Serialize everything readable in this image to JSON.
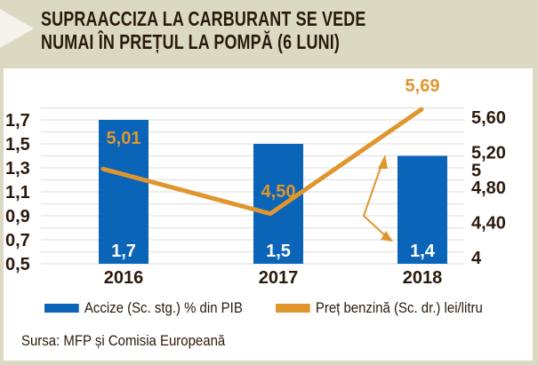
{
  "header": {
    "title_line1": "SUPRAACCIZA LA CARBURANT SE VEDE",
    "title_line2": "NUMAI ÎN PREȚUL LA POMPĂ (6 LUNI)"
  },
  "colors": {
    "bar": "#0a64b8",
    "line": "#e0962e",
    "grid": "#dedede",
    "frame": "#dcd9c3"
  },
  "legend": {
    "bar_label": "Accize (Sc. stg.) % din PIB",
    "line_label": "Preț benzină (Sc. dr.) lei/litru"
  },
  "source": "Sursa: MFP și Comisia Europeană",
  "chart_data": {
    "type": "bar",
    "title": "SUPRAACCIZA LA CARBURANT SE VEDE NUMAI ÎN PREȚUL LA POMPĂ (6 LUNI)",
    "categories": [
      "2016",
      "2017",
      "2018"
    ],
    "series": [
      {
        "name": "Accize (Sc. stg.) % din PIB",
        "type": "bar",
        "axis": "left",
        "values": [
          1.7,
          1.5,
          1.4
        ],
        "labels": [
          "1,7",
          "1,5",
          "1,4"
        ]
      },
      {
        "name": "Preț benzină (Sc. dr.) lei/litru",
        "type": "line",
        "axis": "right",
        "values": [
          5.01,
          4.5,
          5.69
        ],
        "labels": [
          "5,01",
          "4,50",
          "5,69"
        ]
      }
    ],
    "left_axis": {
      "ylim": [
        0.5,
        1.8
      ],
      "ticks": [
        0.5,
        0.7,
        0.9,
        1.1,
        1.3,
        1.5,
        1.7
      ],
      "tick_labels": [
        "0,5",
        "0,7",
        "0,9",
        "1,1",
        "1,3",
        "1,5",
        "1,7"
      ]
    },
    "right_axis": {
      "ylim": [
        4,
        5.6
      ],
      "ticks": [
        4,
        4.4,
        4.8,
        5,
        5.2,
        5.6
      ],
      "tick_labels": [
        "4",
        "4,40",
        "4,80",
        "5",
        "5,20",
        "5,60"
      ]
    },
    "grid": true,
    "legend_position": "bottom",
    "annotation": "double-headed arrow between 2018 price line and 2018 bar"
  }
}
